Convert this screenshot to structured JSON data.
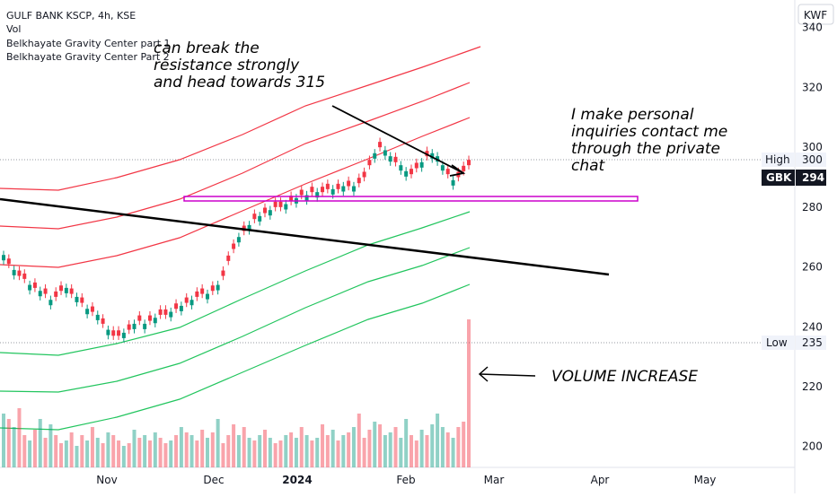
{
  "chart_data": {
    "type": "candlestick",
    "symbol_line": "GULF BANK KSCP, 4h, KSE",
    "indicators": [
      "Vol",
      "Belkhayate Gravity Center part 1",
      "Belkhayate Gravity Center Part 2"
    ],
    "currency": "KWF",
    "ticker": "GBK",
    "last_price": "294",
    "high_label": "High",
    "high_value": "300",
    "low_label": "Low",
    "low_value": "235",
    "y_ticks": [
      "340",
      "320",
      "300",
      "280",
      "260",
      "240",
      "220",
      "200"
    ],
    "x_ticks": [
      "Nov",
      "Dec",
      "2024",
      "Feb",
      "Mar",
      "Apr",
      "May"
    ],
    "ylim": [
      193,
      350
    ],
    "annotations": {
      "break": [
        "can break the",
        "resistance strongly",
        "and head towards 315"
      ],
      "contact": [
        "I make personal",
        "inquiries contact me",
        "through the private",
        "chat"
      ],
      "volume": "VOLUME INCREASE"
    },
    "candles_close": [
      264,
      261,
      259,
      257,
      256,
      254,
      253,
      252,
      251,
      249,
      250,
      252,
      253,
      251,
      250,
      248,
      246,
      245,
      244,
      241,
      239,
      237,
      237,
      238,
      239,
      241,
      242,
      241,
      242,
      243,
      244,
      244,
      245,
      246,
      247,
      248,
      249,
      250,
      251,
      251,
      252,
      254,
      257,
      262,
      266,
      270,
      272,
      274,
      276,
      277,
      278,
      279,
      280,
      280,
      281,
      282,
      283,
      284,
      284,
      285,
      285,
      285,
      286,
      286,
      286,
      287,
      287,
      287,
      288,
      290,
      294,
      298,
      300,
      299,
      297,
      295,
      294,
      292,
      291,
      293,
      295,
      297,
      298,
      297,
      294,
      291,
      289,
      290,
      292,
      294
    ],
    "candles_open_offset": [
      1,
      -1,
      1,
      -1,
      -1,
      1,
      -1,
      1,
      -1,
      1,
      -1,
      -1,
      1,
      -1,
      1,
      -1,
      1,
      -1,
      1,
      -1,
      1,
      -1,
      -1,
      1,
      -1,
      1,
      -1,
      1,
      -1,
      1,
      -1,
      -1,
      1,
      -1,
      1,
      -1,
      1,
      -1,
      -1,
      1,
      -1,
      1,
      -1,
      -1,
      -1,
      1,
      -1,
      1,
      -1,
      1,
      -1,
      1,
      -1,
      -1,
      1,
      -1,
      1,
      -1,
      1,
      -1,
      1,
      -1,
      -1,
      1,
      -1,
      1,
      -1,
      1,
      -1,
      -1,
      -1,
      1,
      -1,
      1,
      1,
      -1,
      1,
      1,
      -1,
      -1,
      1,
      -1,
      1,
      1,
      1,
      -1,
      1,
      -1,
      -1,
      -1
    ],
    "volume_heights": [
      0.2,
      0.18,
      0.15,
      0.22,
      0.12,
      0.1,
      0.14,
      0.18,
      0.11,
      0.16,
      0.12,
      0.09,
      0.1,
      0.13,
      0.08,
      0.12,
      0.1,
      0.15,
      0.11,
      0.09,
      0.13,
      0.12,
      0.1,
      0.08,
      0.09,
      0.14,
      0.11,
      0.12,
      0.1,
      0.13,
      0.11,
      0.09,
      0.1,
      0.12,
      0.15,
      0.13,
      0.12,
      0.1,
      0.14,
      0.11,
      0.13,
      0.18,
      0.09,
      0.12,
      0.16,
      0.12,
      0.15,
      0.11,
      0.1,
      0.12,
      0.14,
      0.11,
      0.09,
      0.1,
      0.12,
      0.13,
      0.11,
      0.15,
      0.12,
      0.1,
      0.11,
      0.16,
      0.12,
      0.14,
      0.1,
      0.12,
      0.13,
      0.15,
      0.2,
      0.11,
      0.14,
      0.17,
      0.16,
      0.12,
      0.13,
      0.15,
      0.11,
      0.18,
      0.12,
      0.1,
      0.14,
      0.12,
      0.16,
      0.2,
      0.15,
      0.13,
      0.11,
      0.15,
      0.17,
      0.55
    ]
  }
}
